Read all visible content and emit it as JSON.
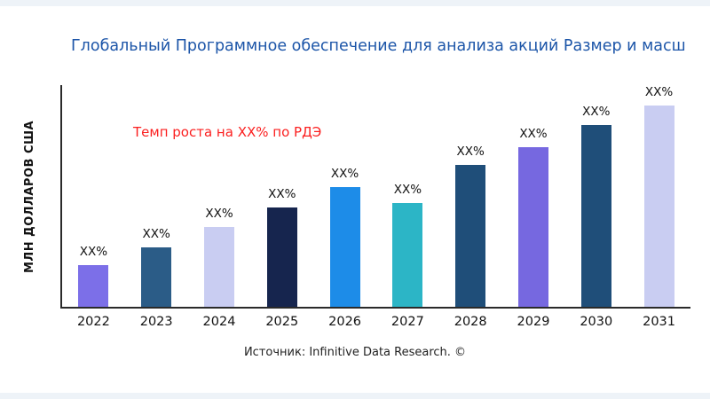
{
  "title": "Глобальный Программное обеспечение для анализа акций Размер и масш",
  "annotation": "Темп роста на XX% по РДЭ",
  "source": "Источник: Infinitive Data Research. ©",
  "chart_data": {
    "type": "bar",
    "title": "Глобальный Программное обеспечение для анализа акций Размер и масш",
    "xlabel": "",
    "ylabel": "МЛН ДОЛЛАРОВ США",
    "categories": [
      "2022",
      "2023",
      "2024",
      "2025",
      "2026",
      "2027",
      "2028",
      "2029",
      "2030",
      "2031"
    ],
    "values": [
      19,
      27,
      36,
      45,
      54,
      47,
      64,
      72,
      82,
      91
    ],
    "bar_labels": [
      "XX%",
      "XX%",
      "XX%",
      "XX%",
      "XX%",
      "XX%",
      "XX%",
      "XX%",
      "XX%",
      "XX%"
    ],
    "colors": [
      "#7c6fe8",
      "#2b5c87",
      "#c9cdf2",
      "#16254e",
      "#1d8ce8",
      "#2cb5c6",
      "#1f4e79",
      "#7668e0",
      "#1f4e79",
      "#c9cdf2"
    ],
    "ylim": [
      0,
      100
    ],
    "grid": false,
    "legend": false,
    "annotation": "Темп роста на XX% по РДЭ",
    "annotation_color": "#fb1f1f",
    "title_color": "#1c55a8"
  }
}
